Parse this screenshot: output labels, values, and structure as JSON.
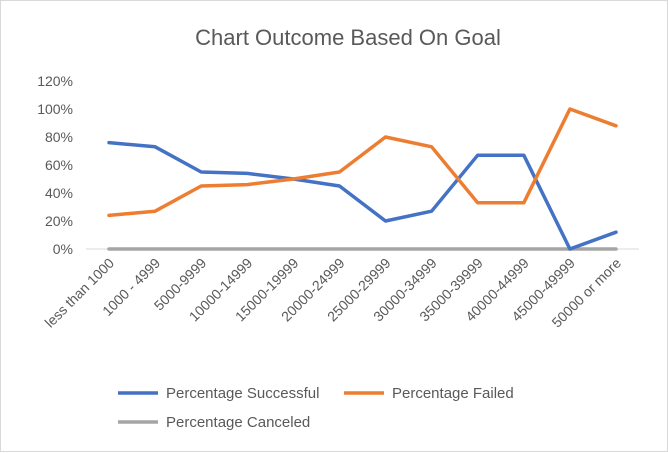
{
  "chart_data": {
    "type": "line",
    "title": "Chart Outcome Based On Goal",
    "xlabel": "",
    "ylabel": "",
    "categories": [
      "less than 1000",
      "1000 - 4999",
      "5000-9999",
      "10000-14999",
      "15000-19999",
      "20000-24999",
      "25000-29999",
      "30000-34999",
      "35000-39999",
      "40000-44999",
      "45000-49999",
      "50000 or more"
    ],
    "y_ticks": [
      "0%",
      "20%",
      "40%",
      "60%",
      "80%",
      "100%",
      "120%"
    ],
    "ylim": [
      0,
      120
    ],
    "grid": false,
    "legend_position": "bottom",
    "series": [
      {
        "name": "Percentage Successful",
        "color": "#4472c4",
        "values": [
          76,
          73,
          55,
          54,
          50,
          45,
          20,
          27,
          67,
          67,
          0,
          12
        ]
      },
      {
        "name": "Percentage Failed",
        "color": "#ed7d31",
        "values": [
          24,
          27,
          45,
          46,
          50,
          55,
          80,
          73,
          33,
          33,
          100,
          88
        ]
      },
      {
        "name": "Percentage Canceled",
        "color": "#a5a5a5",
        "values": [
          0,
          0,
          0,
          0,
          0,
          0,
          0,
          0,
          0,
          0,
          0,
          0
        ]
      }
    ]
  }
}
